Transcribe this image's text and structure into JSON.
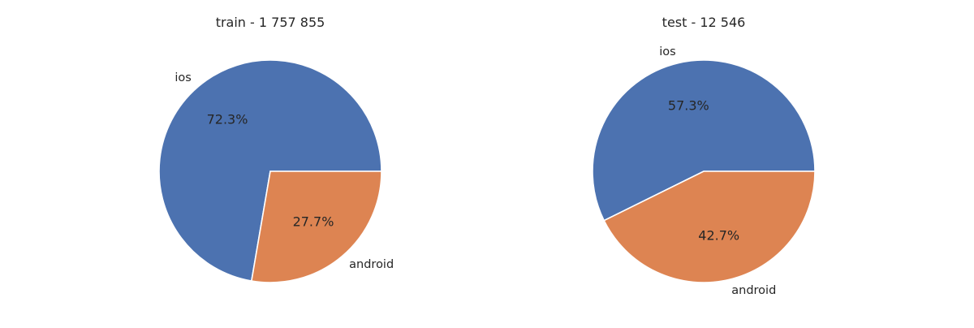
{
  "chart_data": [
    {
      "type": "pie",
      "title": "train - 1 757 855",
      "labels": [
        "ios",
        "android"
      ],
      "values": [
        72.3,
        27.7
      ],
      "value_labels": [
        "72.3%",
        "27.7%"
      ],
      "colors": [
        "#4c72b0",
        "#dd8452"
      ],
      "start_angle_deg": 0,
      "direction": "counterclockwise"
    },
    {
      "type": "pie",
      "title": "test - 12 546",
      "labels": [
        "ios",
        "android"
      ],
      "values": [
        57.3,
        42.7
      ],
      "value_labels": [
        "57.3%",
        "42.7%"
      ],
      "colors": [
        "#4c72b0",
        "#dd8452"
      ],
      "start_angle_deg": 0,
      "direction": "counterclockwise"
    }
  ]
}
